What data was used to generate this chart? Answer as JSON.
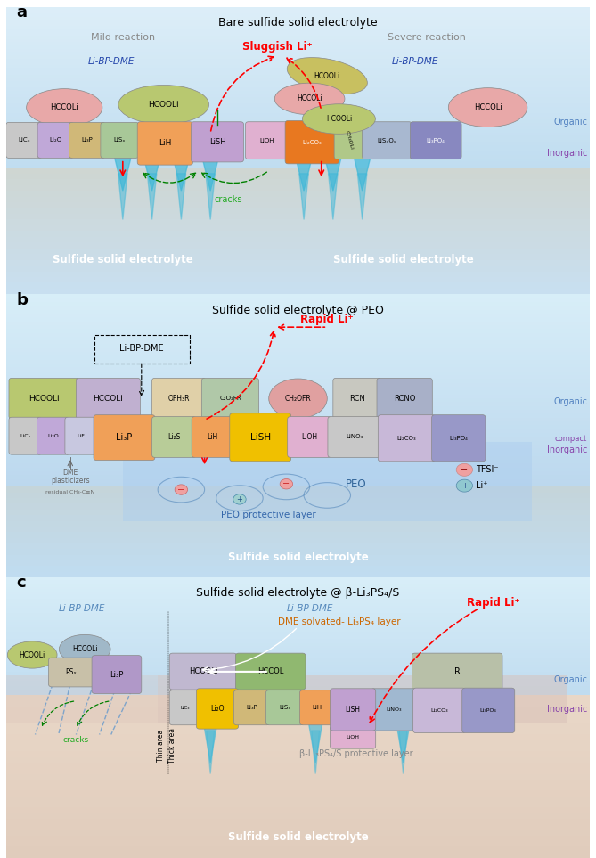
{
  "panels": {
    "a": {
      "title": "Bare sulfide solid electrolyte",
      "subtitle_left": "Mild reaction",
      "subtitle_right": "Severe reaction",
      "sluggish": "Sluggish Li⁺",
      "li_bp_dme_left": "Li-BP-DME",
      "li_bp_dme_right": "Li-BP-DME",
      "organic_label": "Organic",
      "inorganic_label": "Inorganic",
      "cracks_label": "cracks",
      "sulfide_left": "Sulfide solid electrolyte",
      "sulfide_right": "Sulfide solid electrolyte",
      "label": "a"
    },
    "b": {
      "title": "Sulfide solid electrolyte @ PEO",
      "rapid": "Rapid Li⁺",
      "li_bp_dme": "Li-BP-DME",
      "organic_label": "Organic",
      "inorganic_label": "compact\nInorganic",
      "peo_label": "PEO protective layer",
      "sulfide": "Sulfide solid electrolyte",
      "dme_line1": "DME",
      "dme_line2": "plasticizers",
      "dme_line3": "residual CH₃-C≡N",
      "peo_text": "PEO",
      "tfsi_label": "TFSI⁻",
      "li_label": "Li⁺",
      "label": "b"
    },
    "c": {
      "title": "Sulfide solid electrolyte @ β-Li₃PS₄/S",
      "rapid": "Rapid Li⁺",
      "li_bp_dme_left": "Li-BP-DME",
      "li_bp_dme_right": "Li-BP-DME",
      "dme_layer": "DME solvated- Li₃PS₄ layer",
      "organic_label": "Organic",
      "inorganic_label": "Inorganic",
      "thin_area": "Thin area",
      "thick_area": "Thick area",
      "beta_label": "β-Li₃PS₄/S protective layer",
      "sulfide": "Sulfide solid electrolyte",
      "cracks_label": "cracks",
      "label": "c"
    }
  },
  "colors": {
    "bg_blue_light": "#d8eef8",
    "bg_blue_mid": "#b8ddf0",
    "bg_tan": "#c4a882",
    "bg_tan_light": "#ddc9a8",
    "bg_pink": "#e8cfc0",
    "bg_peach": "#f0ddd0",
    "hccooli_pink": "#e8a8a8",
    "hcoooli_green": "#b8c870",
    "hcoooli_yellow": "#c8c060",
    "licx_gray": "#c8c8c8",
    "li2o_purple": "#c0a8d8",
    "li3p_tan": "#d0b878",
    "lisx_green": "#a8c898",
    "lih_orange": "#f0a058",
    "lish_purple": "#c0a0d0",
    "lish_yellow": "#f0c000",
    "lioh_pink": "#e0b0d0",
    "li2co3_orange": "#e87820",
    "ch3oli_green": "#b0c888",
    "lisxoy_blue": "#a8b8d0",
    "li3po4_blue": "#8888c0",
    "lif_lavender": "#c8c8e0",
    "li2s_green": "#b8cc98",
    "lino3_gray": "#c8c8c8",
    "li2co3_b": "#c8b8d8",
    "li3po4_b": "#9898c8",
    "ofh3r_cream": "#e0d0a8",
    "c2o2fr_green": "#b0c8a8",
    "ch2ofr_pink": "#e0a0a0",
    "rcn_gray": "#c8c8c0",
    "rcno_blue": "#a8b0c8",
    "hccooli_lavender": "#c0b0d0",
    "psx_tan": "#c8c0a8",
    "li5p_purple": "#b098c8",
    "hccol_green": "#90b870",
    "r_tan": "#b8c0a8",
    "organic_text": "#5080c0",
    "inorganic_text": "#8844aa",
    "red": "#cc2222",
    "green": "#22aa22",
    "cyan": "#40b8d8",
    "dkblue": "#2244aa"
  }
}
